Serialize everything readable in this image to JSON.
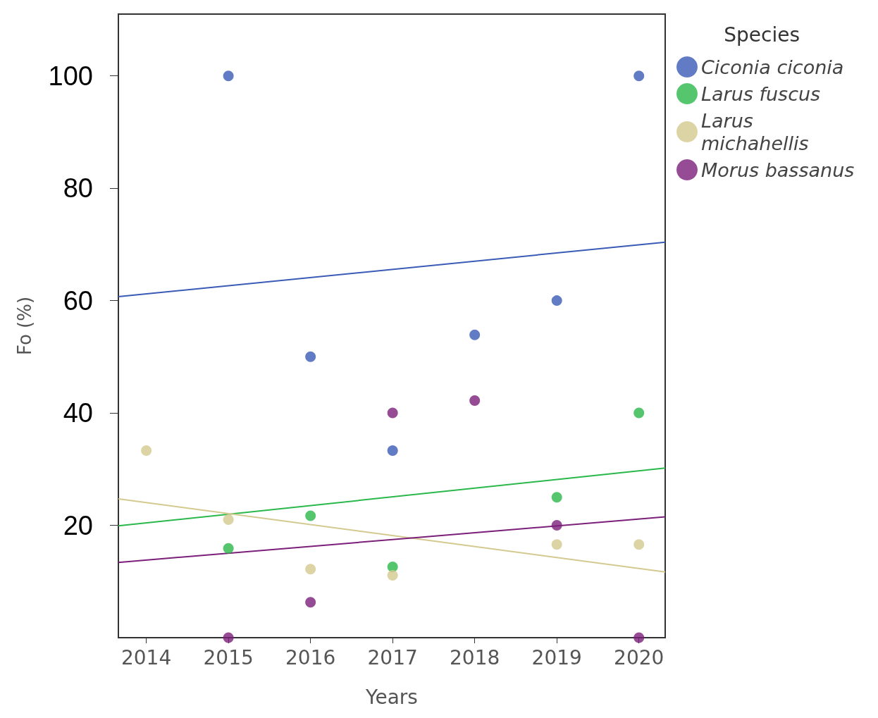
{
  "chart_data": {
    "type": "scatter",
    "xlabel": "Years",
    "ylabel": "Fo (%)",
    "legend_title": "Species",
    "legend": "top right",
    "grid": false,
    "marker": "circle",
    "xlim": [
      2013.66,
      2020.32
    ],
    "xticks": [
      2014,
      2015,
      2016,
      2017,
      2018,
      2019,
      2020
    ],
    "ylim": [
      0,
      111
    ],
    "yticks": [
      20,
      40,
      60,
      80,
      100
    ],
    "series": [
      {
        "name": "Ciconia ciconia",
        "color": "#3a5bb5",
        "x": [
          2015,
          2016,
          2017,
          2018,
          2019,
          2020
        ],
        "values": [
          100,
          50,
          33.3,
          53.9,
          60,
          100
        ]
      },
      {
        "name": "Larus fuscus",
        "color": "#2bb84a",
        "x": [
          2015,
          2016,
          2017,
          2019,
          2020
        ],
        "values": [
          15.9,
          21.7,
          12.6,
          25,
          40
        ]
      },
      {
        "name": "Larus michahellis",
        "color": "#d4c98f",
        "x": [
          2014,
          2015,
          2016,
          2017,
          2019,
          2020
        ],
        "values": [
          33.3,
          21,
          12.2,
          11.1,
          16.6,
          16.6
        ]
      },
      {
        "name": "Morus bassanus",
        "color": "#7b1f7a",
        "x": [
          2015,
          2016,
          2017,
          2018,
          2019,
          2020
        ],
        "values": [
          0,
          6.3,
          40,
          42.2,
          20,
          0
        ]
      },
      {
        "type": "line",
        "marker": "none",
        "color": "#3a5bb5",
        "x": [
          2013.66,
          2020.32
        ],
        "values": [
          60.7,
          70.4
        ]
      },
      {
        "type": "line",
        "marker": "none",
        "color": "#2bb84a",
        "x": [
          2013.66,
          2020.32
        ],
        "values": [
          19.9,
          30.2
        ]
      },
      {
        "type": "line",
        "marker": "none",
        "color": "#d4c98f",
        "x": [
          2013.66,
          2020.32
        ],
        "values": [
          24.7,
          11.7
        ]
      },
      {
        "type": "line",
        "marker": "none",
        "color": "#7b1f7a",
        "x": [
          2013.66,
          2020.32
        ],
        "values": [
          13.4,
          21.5
        ]
      }
    ]
  }
}
